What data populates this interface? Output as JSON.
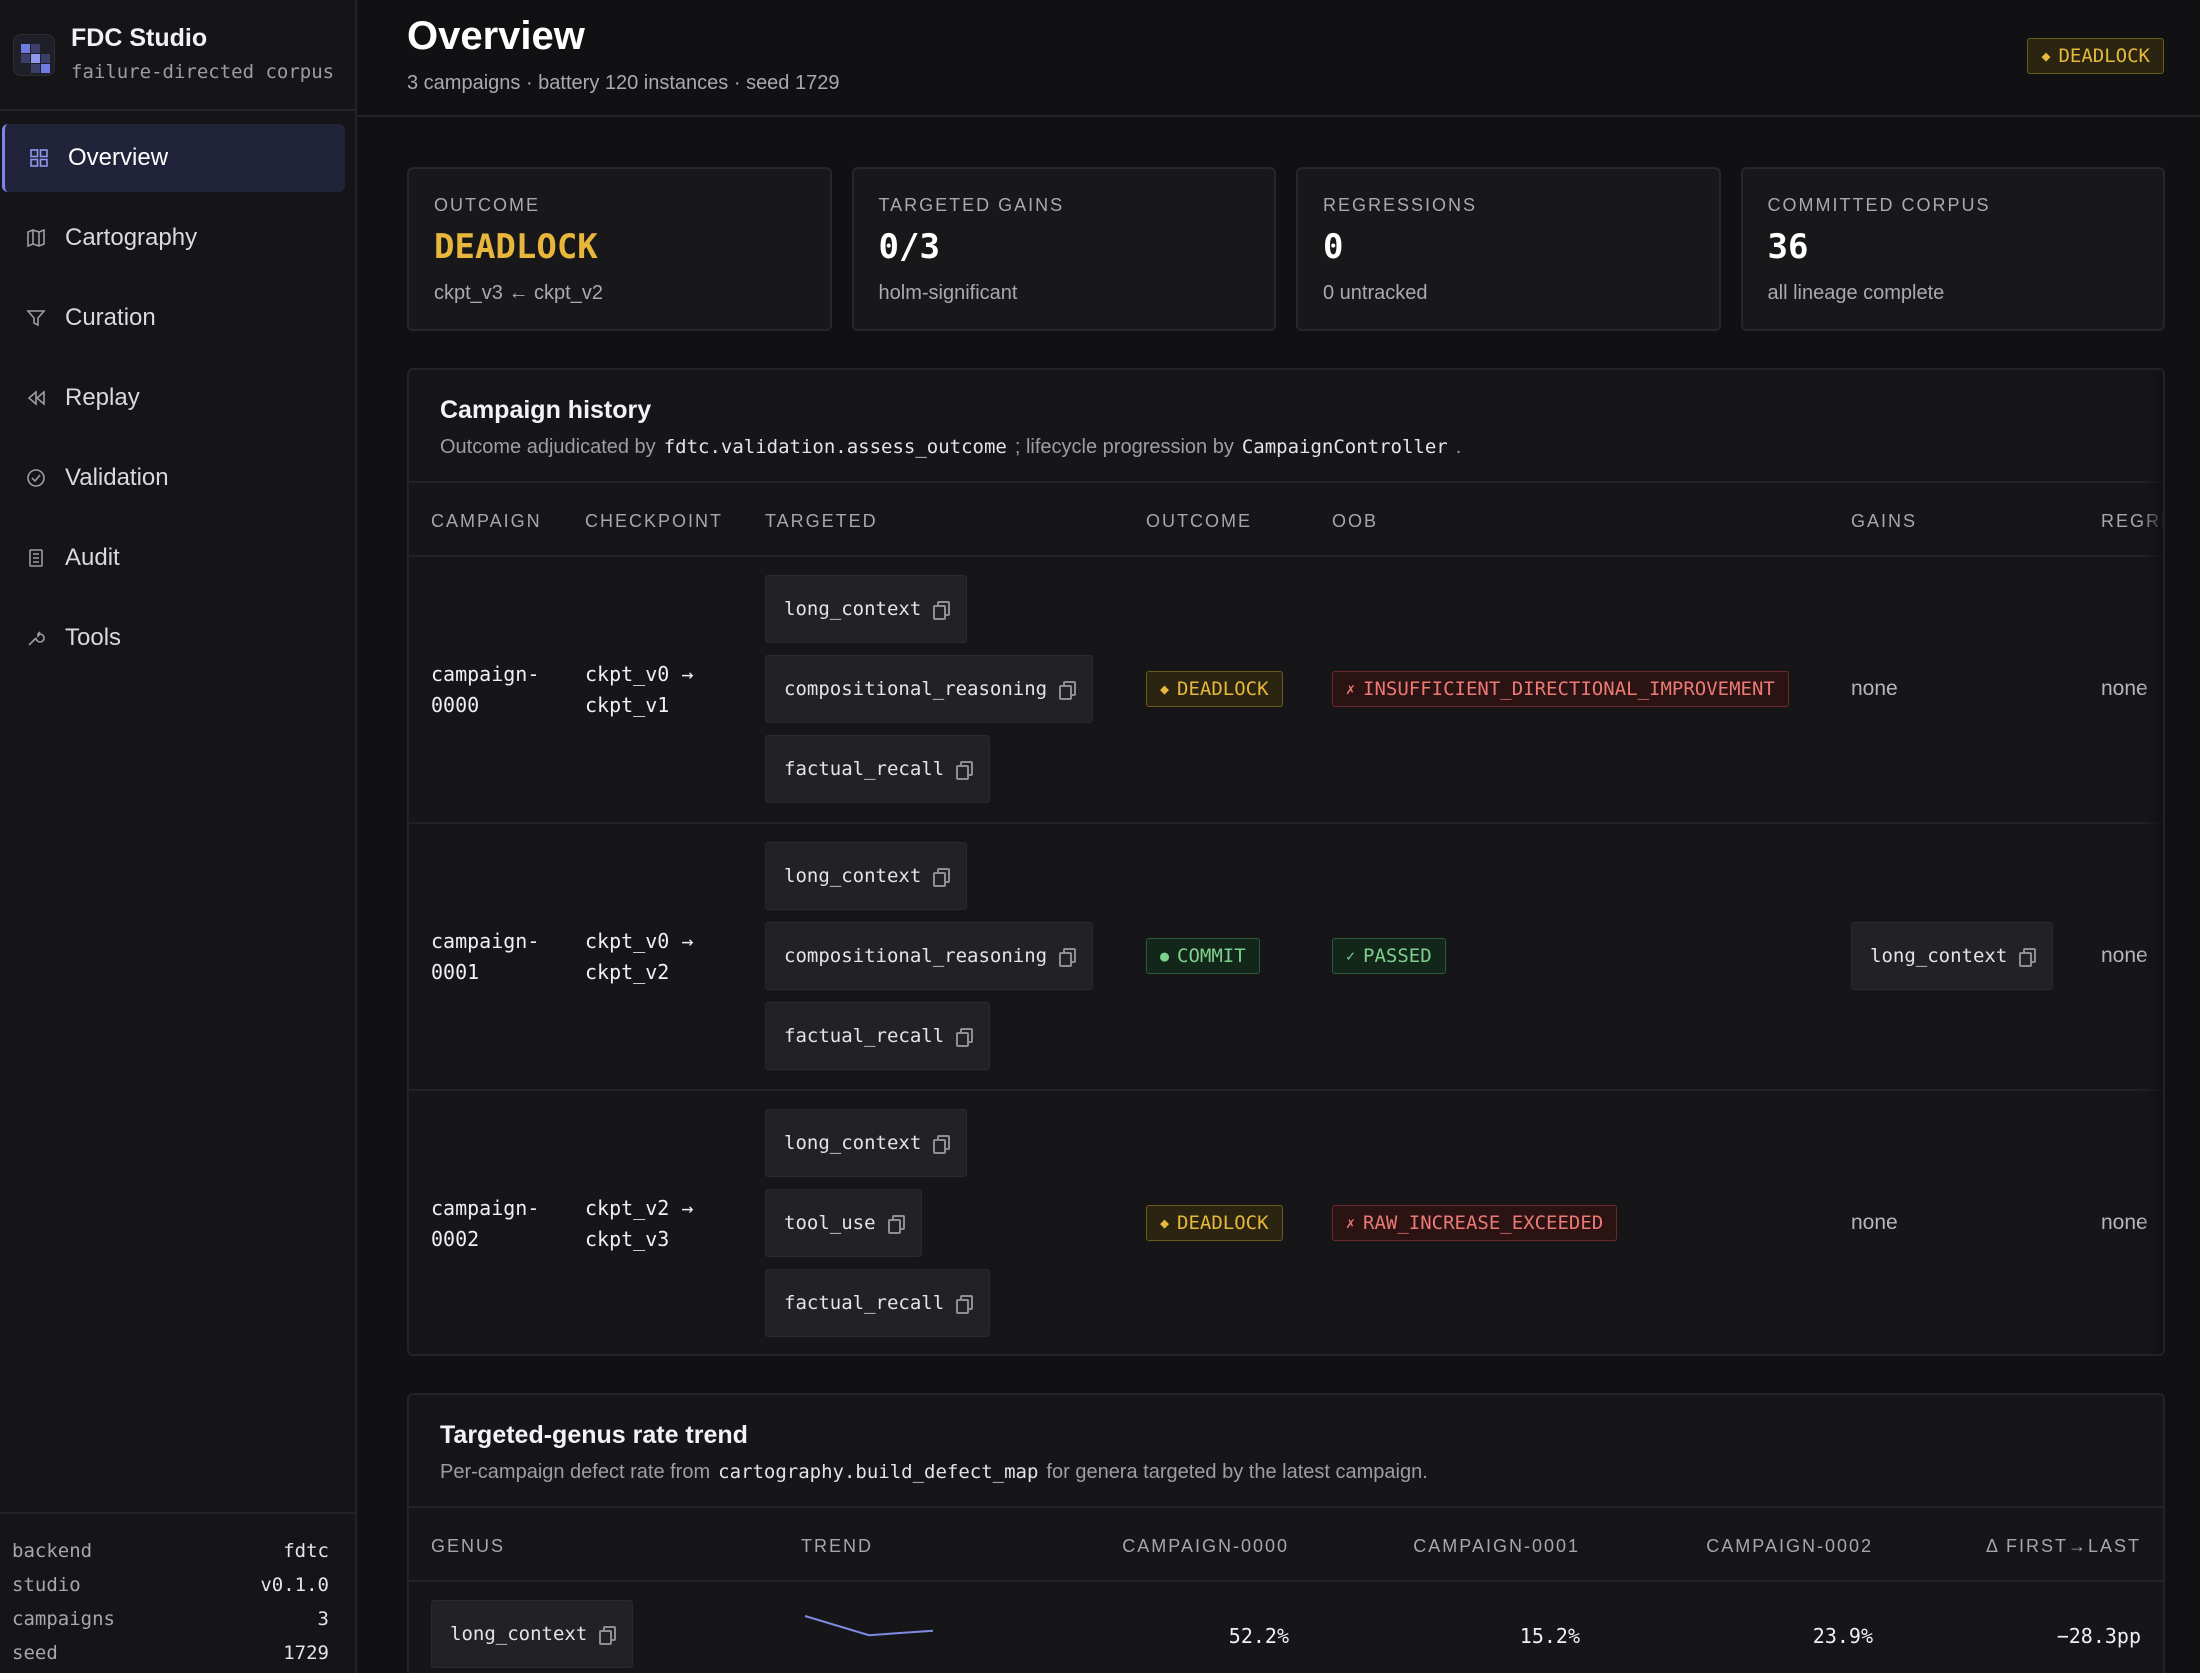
{
  "app": {
    "name": "FDC Studio",
    "tagline": "failure-directed corpus"
  },
  "nav": {
    "items": [
      {
        "label": "Overview",
        "icon": "grid-icon",
        "active": true
      },
      {
        "label": "Cartography",
        "icon": "map-icon"
      },
      {
        "label": "Curation",
        "icon": "filter-icon"
      },
      {
        "label": "Replay",
        "icon": "rewind-icon"
      },
      {
        "label": "Validation",
        "icon": "check-circle-icon"
      },
      {
        "label": "Audit",
        "icon": "ledger-icon"
      },
      {
        "label": "Tools",
        "icon": "wrench-icon"
      }
    ]
  },
  "footer": {
    "rows": [
      {
        "k": "backend",
        "v": "fdtc"
      },
      {
        "k": "studio",
        "v": "v0.1.0"
      },
      {
        "k": "campaigns",
        "v": "3"
      },
      {
        "k": "seed",
        "v": "1729"
      }
    ]
  },
  "header": {
    "title": "Overview",
    "subtitle": "3 campaigns · battery 120 instances · seed 1729",
    "status_badge": "DEADLOCK"
  },
  "kpis": [
    {
      "label": "OUTCOME",
      "value": "DEADLOCK",
      "sub": "ckpt_v3 ← ckpt_v2"
    },
    {
      "label": "TARGETED GAINS",
      "value": "0/3",
      "sub": "holm-significant"
    },
    {
      "label": "REGRESSIONS",
      "value": "0",
      "sub": "0 untracked"
    },
    {
      "label": "COMMITTED CORPUS",
      "value": "36",
      "sub": "all lineage complete"
    }
  ],
  "history": {
    "title": "Campaign history",
    "desc_prefix": "Outcome adjudicated by",
    "desc_code1": "fdtc.validation.assess_outcome",
    "desc_mid": "; lifecycle progression by",
    "desc_code2": "CampaignController",
    "desc_suffix": ".",
    "columns": [
      "CAMPAIGN",
      "CHECKPOINT",
      "TARGETED",
      "OUTCOME",
      "OOB",
      "GAINS",
      "REGRE"
    ],
    "rows": [
      {
        "campaign": "campaign-\n0000",
        "checkpoint": "ckpt_v0 →\nckpt_v1",
        "targeted": [
          "long_context",
          "compositional_reasoning",
          "factual_recall"
        ],
        "outcome": "DEADLOCK",
        "outcome_sym": "◆",
        "oob": "INSUFFICIENT_DIRECTIONAL_IMPROVEMENT",
        "oob_sym": "✗",
        "gains": "none",
        "regressions": "none"
      },
      {
        "campaign": "campaign-\n0001",
        "checkpoint": "ckpt_v0 →\nckpt_v2",
        "targeted": [
          "long_context",
          "compositional_reasoning",
          "factual_recall"
        ],
        "outcome": "COMMIT",
        "outcome_sym": "●",
        "oob": "PASSED",
        "oob_sym": "✓",
        "gains": "long_context",
        "regressions": "none"
      },
      {
        "campaign": "campaign-\n0002",
        "checkpoint": "ckpt_v2 →\nckpt_v3",
        "targeted": [
          "long_context",
          "tool_use",
          "factual_recall"
        ],
        "outcome": "DEADLOCK",
        "outcome_sym": "◆",
        "oob": "RAW_INCREASE_EXCEEDED",
        "oob_sym": "✗",
        "gains": "none",
        "regressions": "none"
      }
    ]
  },
  "trend": {
    "title": "Targeted-genus rate trend",
    "desc_prefix": "Per-campaign defect rate from",
    "desc_code": "cartography.build_defect_map",
    "desc_suffix": "for genera targeted by the latest campaign.",
    "columns": [
      "GENUS",
      "TREND",
      "CAMPAIGN-0000",
      "CAMPAIGN-0001",
      "CAMPAIGN-0002",
      "Δ FIRST→LAST"
    ],
    "rows": [
      {
        "genus": "long_context",
        "rates": [
          52.2,
          15.2,
          23.9
        ],
        "c0": "52.2%",
        "c1": "15.2%",
        "c2": "23.9%",
        "delta": "−28.3pp"
      }
    ]
  },
  "colors": {
    "accent": "#7c86e8",
    "amber": "#e8b63a",
    "green": "#7ed08e",
    "red": "#ec7a74",
    "sparkline": "#7f8ae0"
  }
}
